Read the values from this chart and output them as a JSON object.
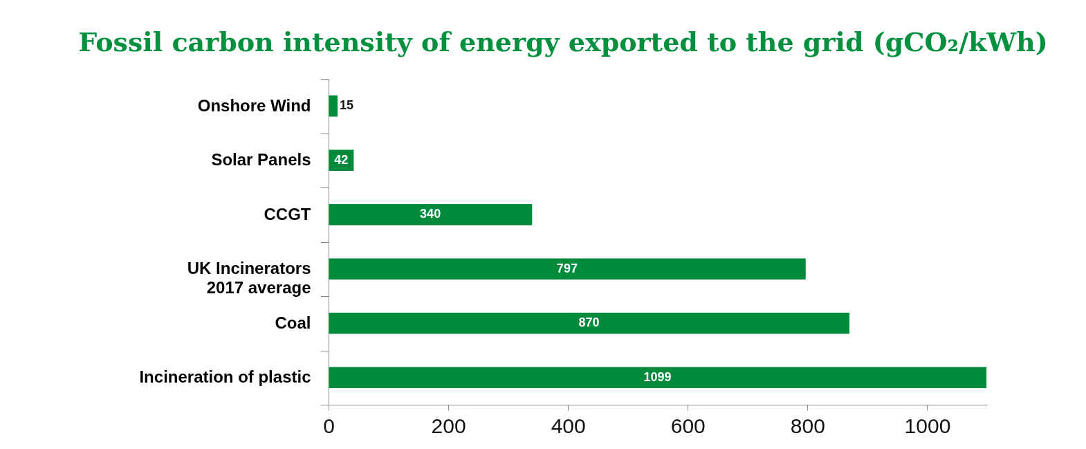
{
  "chart_data": {
    "type": "bar",
    "orientation": "horizontal",
    "title": "Fossil carbon intensity of energy exported to the grid (gCO₂/kWh)",
    "categories": [
      "Onshore Wind",
      "Solar Panels",
      "CCGT",
      "UK Incinerators 2017 average",
      "Coal",
      "Incineration of plastic"
    ],
    "values": [
      15,
      42,
      340,
      797,
      870,
      1099
    ],
    "color": "#008a3c",
    "xlim": [
      0,
      1100
    ],
    "xticks": [
      0,
      200,
      400,
      600,
      800,
      1000
    ],
    "data_labels": true
  }
}
